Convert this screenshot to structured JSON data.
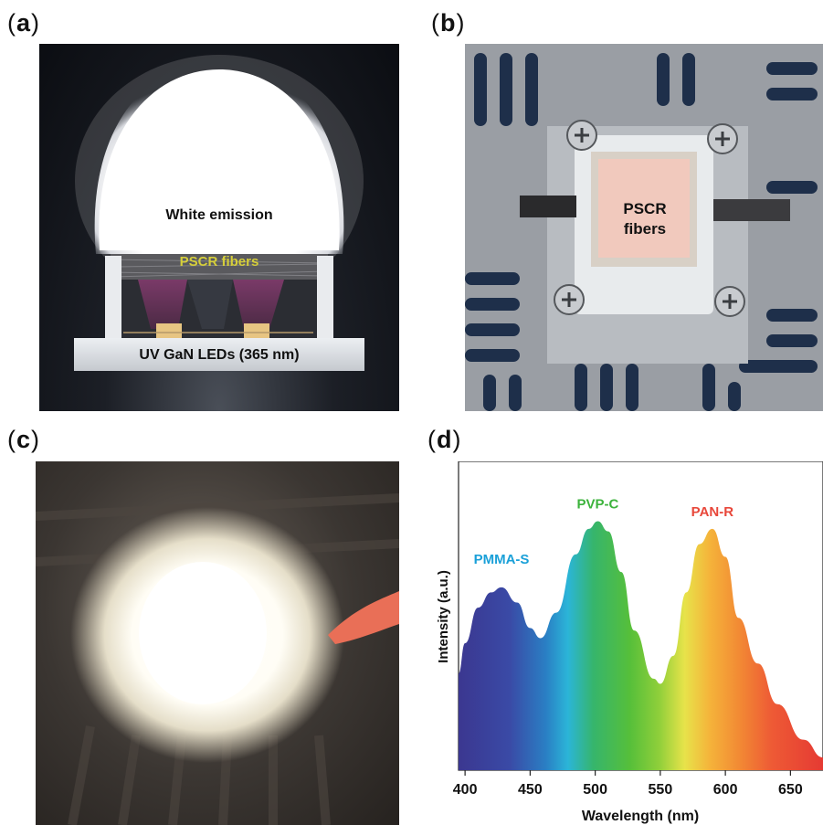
{
  "panels": {
    "a": {
      "label_letter": "a",
      "white_emission": "White emission",
      "pscr_fibers": "PSCR fibers",
      "uv_leds": "UV GaN LEDs (365 nm)"
    },
    "b": {
      "label_letter": "b",
      "pscr_line1": "PSCR",
      "pscr_line2": "fibers"
    },
    "c": {
      "label_letter": "c"
    },
    "d": {
      "label_letter": "d"
    }
  },
  "chart_data": {
    "type": "area",
    "title": "",
    "xlabel": "Wavelength (nm)",
    "ylabel": "Intensity (a.u.)",
    "xlim": [
      395,
      675
    ],
    "x_ticks": [
      400,
      450,
      500,
      550,
      600,
      650
    ],
    "x_tick_labels": [
      "400",
      "450",
      "500",
      "550",
      "600",
      "650"
    ],
    "fill": "spectral color gradient (violet to red)",
    "peaks": [
      {
        "label": "PMMA-S",
        "x": 428,
        "color": "#1aa0d8"
      },
      {
        "label": "PVP-C",
        "x": 502,
        "color": "#3cb33c"
      },
      {
        "label": "PAN-R",
        "x": 590,
        "color": "#e8473a"
      }
    ],
    "x": [
      395,
      400,
      410,
      420,
      428,
      440,
      450,
      458,
      470,
      485,
      495,
      502,
      510,
      520,
      530,
      545,
      550,
      560,
      570,
      580,
      590,
      600,
      610,
      625,
      640,
      660,
      675
    ],
    "y": [
      0.38,
      0.5,
      0.64,
      0.7,
      0.72,
      0.66,
      0.56,
      0.52,
      0.62,
      0.85,
      0.95,
      0.98,
      0.94,
      0.78,
      0.55,
      0.36,
      0.34,
      0.45,
      0.7,
      0.89,
      0.95,
      0.84,
      0.6,
      0.42,
      0.26,
      0.12,
      0.05
    ]
  }
}
